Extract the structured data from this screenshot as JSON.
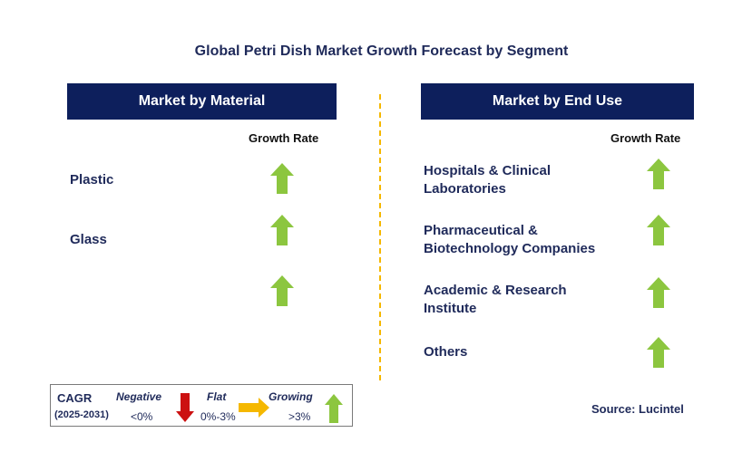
{
  "title": "Global Petri Dish Market Growth Forecast by Segment",
  "left_panel": {
    "header": "Market by Material",
    "growth_rate_label": "Growth Rate",
    "segments": [
      {
        "label": "Plastic",
        "trend": "growing"
      },
      {
        "label": "Glass",
        "trend": "growing"
      },
      {
        "label": "",
        "trend": "growing"
      }
    ]
  },
  "right_panel": {
    "header": "Market by End Use",
    "growth_rate_label": "Growth Rate",
    "segments": [
      {
        "label_line1": "Hospitals & Clinical",
        "label_line2": "Laboratories",
        "trend": "growing"
      },
      {
        "label_line1": "Pharmaceutical &",
        "label_line2": "Biotechnology Companies",
        "trend": "growing"
      },
      {
        "label_line1": "Academic & Research",
        "label_line2": "Institute",
        "trend": "growing"
      },
      {
        "label_line1": "Others",
        "label_line2": "",
        "trend": "growing"
      }
    ]
  },
  "legend": {
    "cagr_label": "CAGR",
    "period": "(2025-2031)",
    "negative_label": "Negative",
    "negative_range": "<0%",
    "flat_label": "Flat",
    "flat_range": "0%-3%",
    "growing_label": "Growing",
    "growing_range": ">3%"
  },
  "source": "Source: Lucintel",
  "colors": {
    "header_bg": "#0d1f5c",
    "growing_arrow": "#8cc63f",
    "flat_arrow": "#f5b800",
    "negative_arrow": "#cc1111",
    "divider": "#f5b800"
  }
}
